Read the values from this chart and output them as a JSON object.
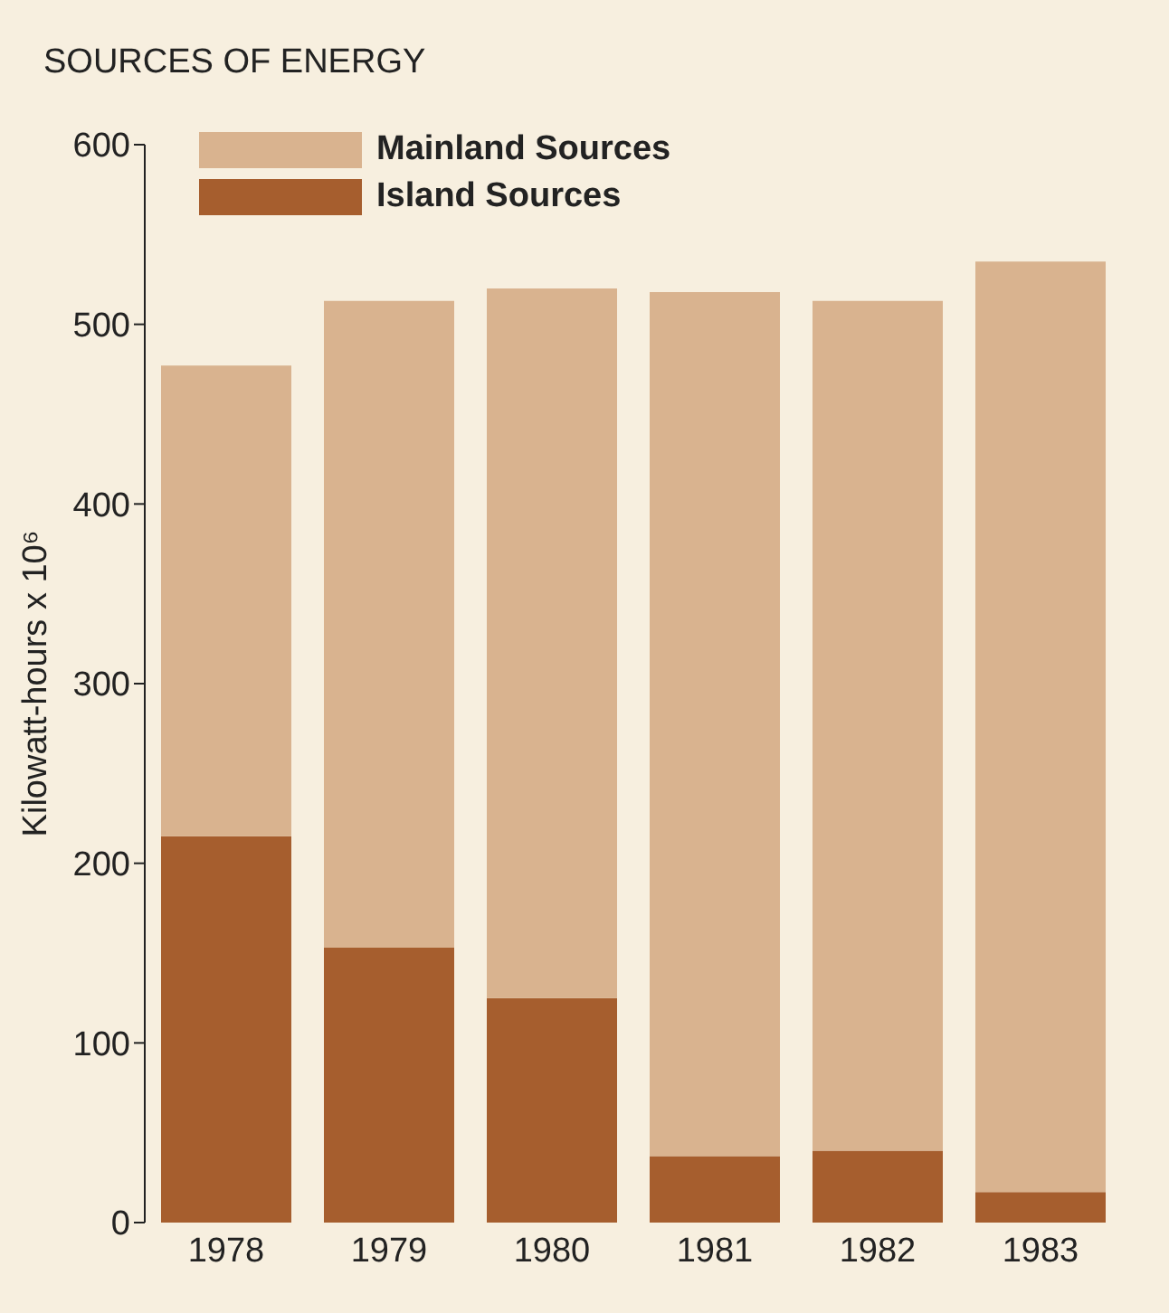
{
  "chart_data": {
    "type": "bar",
    "title": "SOURCES OF ENERGY",
    "ylabel": "Kilowatt-hours x 10⁶",
    "categories": [
      "1978",
      "1979",
      "1980",
      "1981",
      "1982",
      "1983"
    ],
    "stacked": true,
    "series": [
      {
        "name": "Island Sources",
        "color": "#a65e2e",
        "values": [
          215,
          153,
          125,
          37,
          40,
          17
        ]
      },
      {
        "name": "Mainland Sources",
        "color": "#d9b38f",
        "values": [
          262,
          360,
          395,
          481,
          473,
          518
        ]
      }
    ],
    "ylim": [
      0,
      600
    ],
    "yticks": [
      0,
      100,
      200,
      300,
      400,
      500,
      600
    ],
    "grid": false,
    "legend": "top left"
  }
}
